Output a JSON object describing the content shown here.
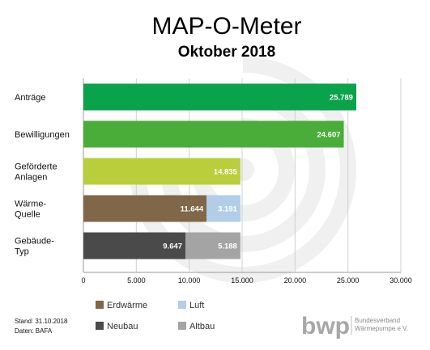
{
  "chart_data": {
    "type": "bar",
    "orientation": "horizontal",
    "stacked": true,
    "title": "MAP-O-Meter",
    "subtitle": "Oktober 2018",
    "categories": [
      [
        "Anträge"
      ],
      [
        "Bewilligungen"
      ],
      [
        "Geförderte",
        "Anlagen"
      ],
      [
        "Wärme-",
        "Quelle"
      ],
      [
        "Gebäude-",
        "Typ"
      ]
    ],
    "rows": [
      {
        "segments": [
          {
            "value": 25789,
            "label": "25.789",
            "color": "#0aa24a"
          }
        ]
      },
      {
        "segments": [
          {
            "value": 24607,
            "label": "24.607",
            "color": "#4aad3a"
          }
        ]
      },
      {
        "segments": [
          {
            "value": 14835,
            "label": "14.835",
            "color": "#b8cf3b"
          }
        ]
      },
      {
        "segments": [
          {
            "value": 11644,
            "label": "11.644",
            "color": "#806748",
            "series": "Erdwärme"
          },
          {
            "value": 3191,
            "label": "3.191",
            "color": "#b1cde8",
            "series": "Luft"
          }
        ]
      },
      {
        "segments": [
          {
            "value": 9647,
            "label": "9.647",
            "color": "#4a4a4a",
            "series": "Neubau"
          },
          {
            "value": 5188,
            "label": "5.188",
            "color": "#a4a4a4",
            "series": "Altbau"
          }
        ]
      }
    ],
    "xlim": [
      0,
      30000
    ],
    "xticks": [
      0,
      5000,
      10000,
      15000,
      20000,
      25000,
      30000
    ],
    "xtick_labels": [
      "0",
      "5.000",
      "10.000",
      "15.000",
      "20.000",
      "25.000",
      "30.000"
    ],
    "grid": "vertical",
    "legend": [
      {
        "name": "Erdwärme",
        "color": "#806748"
      },
      {
        "name": "Luft",
        "color": "#b1cde8"
      },
      {
        "name": "Neubau",
        "color": "#4a4a4a"
      },
      {
        "name": "Altbau",
        "color": "#a4a4a4"
      }
    ],
    "legend_position": "bottom"
  },
  "footer": {
    "stand": "Stand: 31.10.2018",
    "daten": "Daten: BAFA",
    "logo_text": "bwp",
    "logo_sub_line1": "Bundesverband",
    "logo_sub_line2": "Wärmepumpe e.V."
  }
}
